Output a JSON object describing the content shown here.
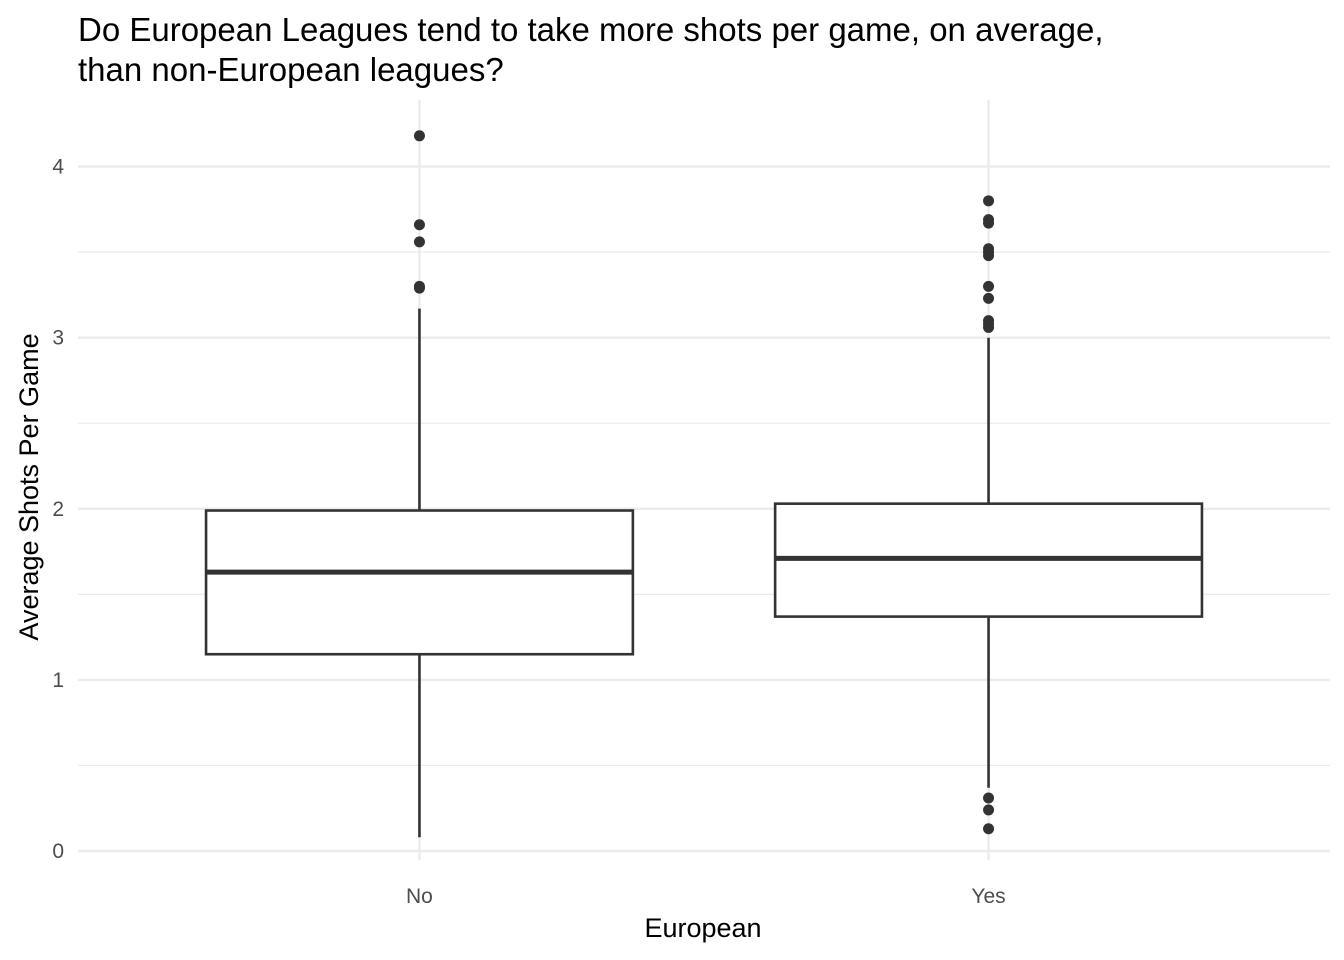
{
  "chart_data": {
    "type": "box",
    "title_lines": [
      "Do European Leagues tend to  take more shots per game, on average,",
      "than non-European leagues?"
    ],
    "xlabel": "European",
    "ylabel": "Average Shots Per Game",
    "ylim": [
      -0.07,
      4.39
    ],
    "y_ticks": [
      0,
      1,
      2,
      3,
      4
    ],
    "y_tick_labels": [
      "0",
      "1",
      "2",
      "3",
      "4"
    ],
    "grid": true,
    "categories": [
      "No",
      "Yes"
    ],
    "boxes": [
      {
        "category": "No",
        "min": 0.08,
        "q1": 1.15,
        "median": 1.63,
        "q3": 1.99,
        "max": 3.17,
        "outliers": [
          3.29,
          3.3,
          3.56,
          3.66,
          4.18
        ]
      },
      {
        "category": "Yes",
        "min": 0.37,
        "q1": 1.37,
        "median": 1.71,
        "q3": 2.03,
        "max": 3.0,
        "outliers": [
          0.13,
          0.24,
          0.31,
          3.06,
          3.08,
          3.1,
          3.23,
          3.3,
          3.48,
          3.5,
          3.52,
          3.67,
          3.69,
          3.8
        ]
      }
    ],
    "colors": {
      "box_line": "#333333",
      "box_fill": "#ffffff",
      "grid": "#ebebeb",
      "outlier": "#333333"
    }
  }
}
